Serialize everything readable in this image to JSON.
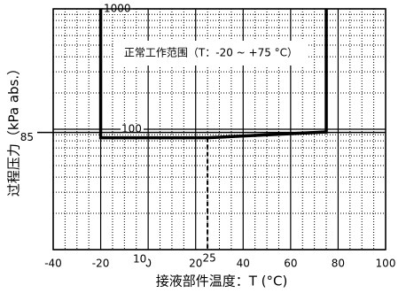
{
  "chart_data": {
    "type": "line",
    "x_label": "接液部件温度：T (°C)",
    "y_label": "过程压力（kPa abs.）",
    "annotation": "正常工作范围（T：-20 ~ +75 °C）",
    "xlim": [
      -40,
      100
    ],
    "xticks": [
      -40,
      -20,
      0,
      20,
      40,
      60,
      80,
      100
    ],
    "xminor": [
      -35,
      -30,
      -25,
      -15,
      -10,
      -5,
      5,
      10,
      15,
      25,
      30,
      35,
      45,
      50,
      55,
      65,
      70,
      75,
      85,
      90,
      95
    ],
    "ylim": [
      10,
      1000
    ],
    "log_y": true,
    "yticks": [
      10,
      100,
      1000
    ],
    "yminor": [
      20,
      30,
      40,
      50,
      60,
      70,
      80,
      90,
      200,
      300,
      400,
      500,
      600,
      700,
      800,
      900
    ],
    "reference_lines": [
      {
        "value": 85,
        "label": "85"
      }
    ],
    "x_markers": [
      {
        "value": 25,
        "label": "25"
      }
    ],
    "series": [
      {
        "color": "#000000",
        "style": "solid",
        "x": [
          -20,
          -20,
          25,
          75,
          75
        ],
        "values": [
          1000,
          85,
          85,
          95,
          1000
        ]
      },
      {
        "color": "#000000",
        "style": "dashed",
        "x": [
          25,
          25
        ],
        "values": [
          85,
          10
        ]
      }
    ]
  }
}
